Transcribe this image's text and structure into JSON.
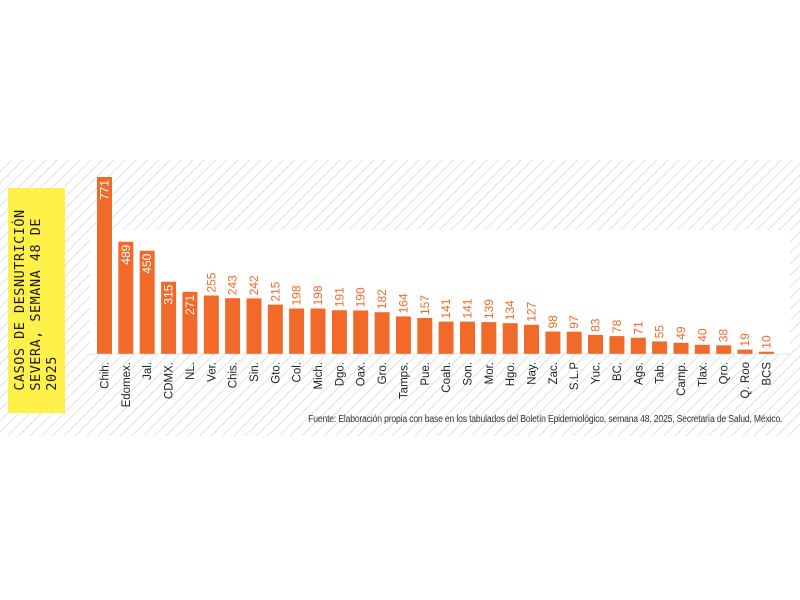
{
  "title_lines": [
    "CASOS DE DESNUTRICIÓN",
    "SEVERA, SEMANA 48 DE",
    "2025"
  ],
  "source": "Fuente: Elaboración propia con base en los tabulados del Boletín Epidemiológico, semana 48, 2025, Secretaría de Salud, México.",
  "colors": {
    "bar": "#f26a2a",
    "title_bg": "#fff04a",
    "hatch": "#c9d3e0",
    "value_label": "#ffffff",
    "value_label_outside": "#f26a2a",
    "category_label": "#222222"
  },
  "chart_data": {
    "type": "bar",
    "title": "CASOS DE DESNUTRICIÓN SEVERA, SEMANA 48 DE 2025",
    "xlabel": "",
    "ylabel": "",
    "ylim": [
      0,
      771
    ],
    "grid": false,
    "categories": [
      "Chih.",
      "Edomex.",
      "Jal.",
      "CDMX.",
      "NL.",
      "Ver.",
      "Chis.",
      "Sin.",
      "Gto.",
      "Col.",
      "Mich.",
      "Dgo.",
      "Oax.",
      "Gro.",
      "Tamps.",
      "Pue.",
      "Coah.",
      "Son.",
      "Mor.",
      "Hgo.",
      "Nay.",
      "Zac.",
      "S.L.P",
      "Yuc.",
      "BC.",
      "Ags.",
      "Tab.",
      "Camp.",
      "Tlax.",
      "Qro.",
      "Q. Roo",
      "BCS"
    ],
    "values": [
      771,
      489,
      450,
      315,
      271,
      255,
      243,
      242,
      215,
      198,
      198,
      191,
      190,
      182,
      164,
      157,
      141,
      141,
      139,
      134,
      127,
      98,
      97,
      83,
      78,
      71,
      55,
      49,
      40,
      38,
      19,
      10
    ]
  }
}
